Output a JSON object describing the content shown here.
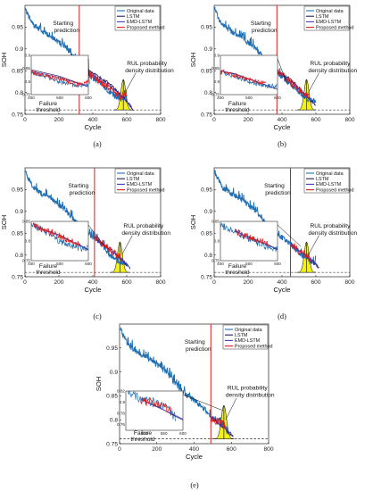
{
  "figure": {
    "legend": [
      "Original data",
      "LSTM",
      "EMD-LSTM",
      "Proposed method"
    ],
    "colors": {
      "original": "#1f6fb4",
      "lstm": "#2b1a5a",
      "emd": "#3b3fc8",
      "proposed": "#e01b1b",
      "start_line": "#e01b1b",
      "density_fill": "#f2ef1a"
    }
  },
  "chart_data": [
    {
      "panel": "(a)",
      "type": "line",
      "xlabel": "Cycle",
      "ylabel": "SOH",
      "xlim": [
        0,
        800
      ],
      "ylim": [
        0.75,
        1.0
      ],
      "xticks": [
        "0",
        "200",
        "400",
        "600",
        "800"
      ],
      "yticks": [
        "0.75",
        "0.8",
        "0.85",
        "0.9",
        "0.95"
      ],
      "start_cycle": 320,
      "failure_threshold": 0.76,
      "rul_peak_cycle": 580,
      "annotations": {
        "start": [
          "Starting",
          "prediction"
        ],
        "rul": [
          "RUL probability",
          "density distribution"
        ],
        "failure": [
          "Failure",
          "threshold"
        ]
      },
      "inset": {
        "xlim": [
          400,
          600
        ],
        "ylim": [
          0.75,
          0.9
        ],
        "xticks": [
          "400",
          "500",
          "600"
        ],
        "yticks": [
          "0.75",
          "0.8",
          "0.85",
          "0.9"
        ]
      },
      "series": [
        {
          "name": "Original data",
          "x": [
            0,
            20,
            50,
            100,
            150,
            200,
            250,
            300,
            320,
            350,
            400,
            450,
            500,
            550,
            600
          ],
          "y": [
            0.995,
            0.975,
            0.955,
            0.94,
            0.93,
            0.915,
            0.9,
            0.875,
            0.86,
            0.845,
            0.832,
            0.82,
            0.8,
            0.785,
            0.79
          ]
        },
        {
          "name": "LSTM",
          "x": [
            320,
            400,
            500,
            600,
            640
          ],
          "y": [
            0.86,
            0.845,
            0.82,
            0.78,
            0.76
          ]
        },
        {
          "name": "EMD-LSTM",
          "x": [
            320,
            400,
            500,
            600,
            630
          ],
          "y": [
            0.86,
            0.84,
            0.815,
            0.78,
            0.765
          ]
        },
        {
          "name": "Proposed method",
          "x": [
            320,
            400,
            500,
            560,
            600
          ],
          "y": [
            0.86,
            0.835,
            0.81,
            0.79,
            0.8
          ]
        }
      ]
    },
    {
      "panel": "(b)",
      "type": "line",
      "xlabel": "Cycle",
      "ylabel": "SOH",
      "xlim": [
        0,
        800
      ],
      "ylim": [
        0.75,
        1.0
      ],
      "xticks": [
        "0",
        "200",
        "400",
        "600",
        "800"
      ],
      "yticks": [
        "0.75",
        "0.8",
        "0.85",
        "0.9",
        "0.95"
      ],
      "start_cycle": 370,
      "failure_threshold": 0.76,
      "rul_peak_cycle": 545,
      "annotations": {
        "start": [
          "Starting",
          "prediction"
        ],
        "rul": [
          "RUL probability",
          "density distribution"
        ],
        "failure": [
          "Failure",
          "threshold"
        ]
      },
      "inset": {
        "xlim": [
          400,
          600
        ],
        "ylim": [
          0.75,
          0.9
        ],
        "xticks": [
          "400",
          "500",
          "600"
        ],
        "yticks": [
          "0.75",
          "0.8",
          "0.85",
          "0.9"
        ]
      },
      "series": [
        {
          "name": "Original data",
          "x": [
            0,
            20,
            50,
            100,
            150,
            200,
            250,
            300,
            350,
            370,
            400,
            450,
            500,
            550,
            600
          ],
          "y": [
            0.995,
            0.975,
            0.955,
            0.94,
            0.93,
            0.915,
            0.9,
            0.875,
            0.855,
            0.848,
            0.835,
            0.82,
            0.8,
            0.785,
            0.78
          ]
        },
        {
          "name": "LSTM",
          "x": [
            370,
            450,
            550,
            600
          ],
          "y": [
            0.848,
            0.83,
            0.79,
            0.77
          ]
        },
        {
          "name": "EMD-LSTM",
          "x": [
            370,
            450,
            550,
            590
          ],
          "y": [
            0.848,
            0.828,
            0.79,
            0.775
          ]
        },
        {
          "name": "Proposed method",
          "x": [
            370,
            450,
            520,
            560
          ],
          "y": [
            0.848,
            0.825,
            0.8,
            0.79
          ]
        }
      ]
    },
    {
      "panel": "(c)",
      "type": "line",
      "xlabel": "Cycle",
      "ylabel": "SOH",
      "xlim": [
        0,
        800
      ],
      "ylim": [
        0.75,
        1.0
      ],
      "xticks": [
        "0",
        "200",
        "400",
        "600",
        "800"
      ],
      "yticks": [
        "0.75",
        "0.8",
        "0.85",
        "0.9",
        "0.95"
      ],
      "start_cycle": 410,
      "failure_threshold": 0.76,
      "rul_peak_cycle": 560,
      "annotations": {
        "start": [
          "Starting",
          "prediction"
        ],
        "rul": [
          "RUL probability",
          "density distribution"
        ],
        "failure": [
          "Failure",
          "threshold"
        ]
      },
      "inset": {
        "xlim": [
          400,
          600
        ],
        "ylim": [
          0.75,
          0.85
        ],
        "xticks": [
          "400",
          "500",
          "600"
        ],
        "yticks": [
          "0.75",
          "0.8",
          "0.85"
        ]
      },
      "series": [
        {
          "name": "Original data",
          "x": [
            0,
            20,
            50,
            100,
            150,
            200,
            250,
            300,
            350,
            410,
            450,
            500,
            550,
            600
          ],
          "y": [
            0.995,
            0.975,
            0.955,
            0.94,
            0.93,
            0.915,
            0.9,
            0.875,
            0.855,
            0.838,
            0.825,
            0.8,
            0.785,
            0.78
          ]
        },
        {
          "name": "LSTM",
          "x": [
            410,
            500,
            580,
            620
          ],
          "y": [
            0.838,
            0.815,
            0.785,
            0.77
          ]
        },
        {
          "name": "EMD-LSTM",
          "x": [
            410,
            500,
            570,
            610
          ],
          "y": [
            0.838,
            0.812,
            0.79,
            0.775
          ]
        },
        {
          "name": "Proposed method",
          "x": [
            410,
            480,
            540,
            570
          ],
          "y": [
            0.838,
            0.82,
            0.8,
            0.79
          ]
        }
      ]
    },
    {
      "panel": "(d)",
      "type": "line",
      "xlabel": "Cycle",
      "ylabel": "SOH",
      "xlim": [
        0,
        800
      ],
      "ylim": [
        0.75,
        1.0
      ],
      "xticks": [
        "0",
        "200",
        "400",
        "600",
        "800"
      ],
      "yticks": [
        "0.75",
        "0.8",
        "0.85",
        "0.9",
        "0.95"
      ],
      "start_cycle": 450,
      "failure_threshold": 0.76,
      "rul_peak_cycle": 545,
      "annotations": {
        "start": [
          "Starting",
          "prediction"
        ],
        "rul": [
          "RUL probability",
          "density distribution"
        ],
        "failure": [
          "Failure",
          "threshold"
        ]
      },
      "inset": {
        "xlim": [
          400,
          600
        ],
        "ylim": [
          0.75,
          0.85
        ],
        "xticks": [
          "400",
          "500",
          "600"
        ],
        "yticks": [
          "0.75",
          "0.8",
          "0.85"
        ]
      },
      "series": [
        {
          "name": "Original data",
          "x": [
            0,
            20,
            50,
            100,
            150,
            200,
            250,
            300,
            350,
            400,
            450,
            500,
            550,
            600
          ],
          "y": [
            0.995,
            0.975,
            0.955,
            0.94,
            0.93,
            0.915,
            0.9,
            0.875,
            0.855,
            0.84,
            0.825,
            0.805,
            0.79,
            0.78
          ]
        },
        {
          "name": "LSTM",
          "x": [
            450,
            520,
            580,
            620
          ],
          "y": [
            0.825,
            0.805,
            0.785,
            0.77
          ]
        },
        {
          "name": "EMD-LSTM",
          "x": [
            450,
            520,
            570,
            610
          ],
          "y": [
            0.825,
            0.803,
            0.79,
            0.775
          ]
        },
        {
          "name": "Proposed method",
          "x": [
            450,
            500,
            540,
            570
          ],
          "y": [
            0.825,
            0.81,
            0.8,
            0.79
          ]
        }
      ]
    },
    {
      "panel": "(e)",
      "type": "line",
      "xlabel": "Cycle",
      "ylabel": "SOH",
      "xlim": [
        0,
        800
      ],
      "ylim": [
        0.75,
        1.0
      ],
      "xticks": [
        "0",
        "200",
        "400",
        "600",
        "800"
      ],
      "yticks": [
        "0.75",
        "0.8",
        "0.85",
        "0.9",
        "0.95"
      ],
      "start_cycle": 490,
      "failure_threshold": 0.76,
      "rul_peak_cycle": 560,
      "annotations": {
        "start": [
          "Starting",
          "prediction"
        ],
        "rul": [
          "RUL probability",
          "density distribution"
        ],
        "failure": [
          "Failure",
          "threshold"
        ]
      },
      "inset": {
        "xlim": [
          450,
          600
        ],
        "ylim": [
          0.75,
          0.82
        ],
        "xticks": [
          "500",
          "550",
          "600"
        ],
        "yticks": [
          "0.76",
          "0.78",
          "0.8",
          "0.82"
        ]
      },
      "series": [
        {
          "name": "Original data",
          "x": [
            0,
            20,
            50,
            100,
            150,
            200,
            250,
            300,
            350,
            400,
            450,
            490,
            520,
            550,
            580
          ],
          "y": [
            0.995,
            0.975,
            0.955,
            0.94,
            0.93,
            0.915,
            0.9,
            0.875,
            0.855,
            0.84,
            0.825,
            0.805,
            0.8,
            0.79,
            0.775
          ]
        },
        {
          "name": "LSTM",
          "x": [
            490,
            540,
            580,
            610
          ],
          "y": [
            0.805,
            0.79,
            0.775,
            0.765
          ]
        },
        {
          "name": "EMD-LSTM",
          "x": [
            490,
            530,
            570,
            600
          ],
          "y": [
            0.805,
            0.792,
            0.78,
            0.77
          ]
        },
        {
          "name": "Proposed method",
          "x": [
            490,
            520,
            550,
            570
          ],
          "y": [
            0.805,
            0.798,
            0.79,
            0.785
          ]
        }
      ]
    }
  ]
}
